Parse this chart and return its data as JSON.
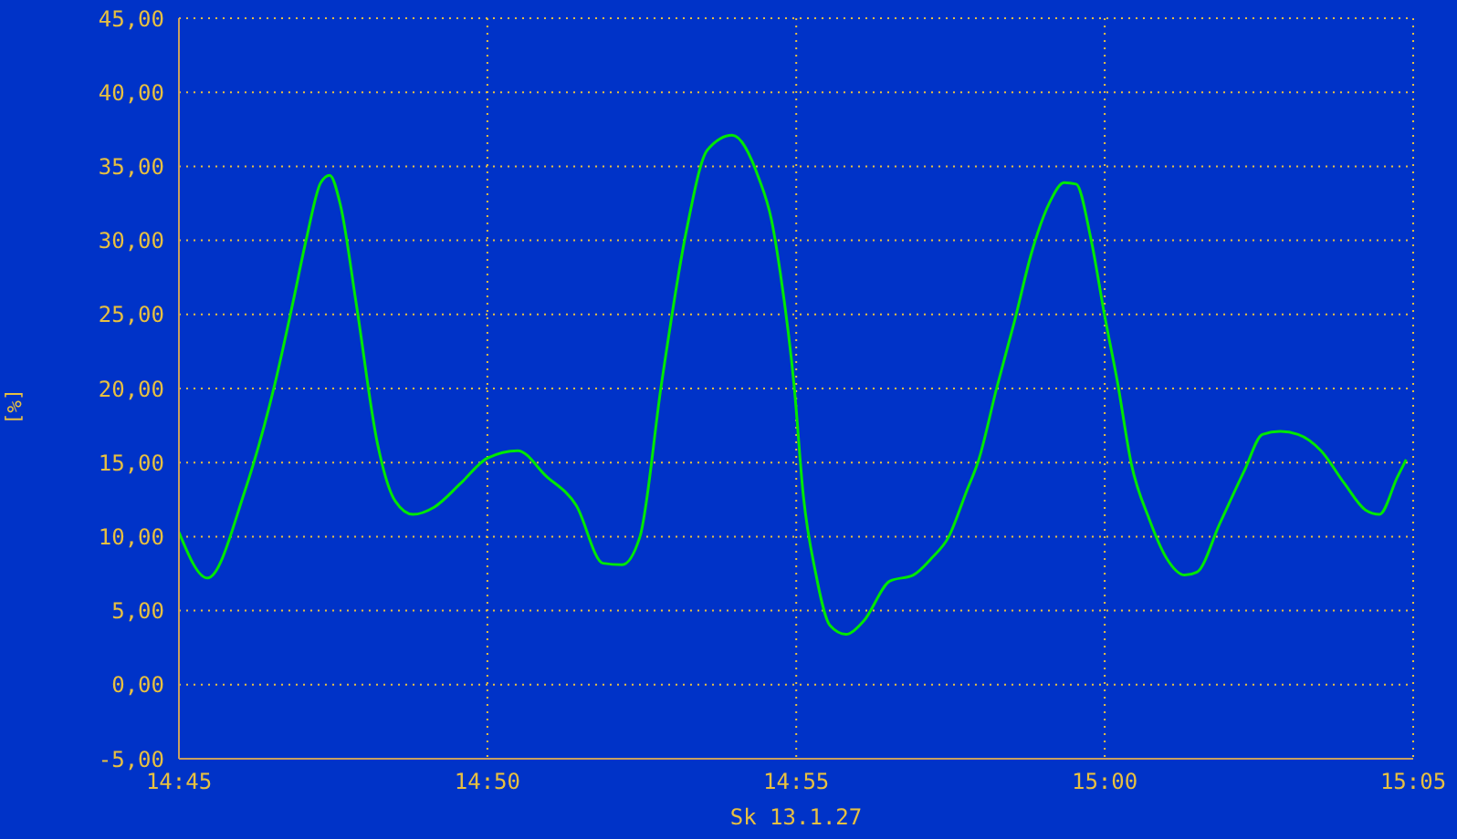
{
  "chart_data": {
    "type": "line",
    "xlabel": "Sk 13.1.27",
    "ylabel": "[%]",
    "xlim": [
      14.75,
      15.0833
    ],
    "xticks": [
      {
        "value": 14.75,
        "label": "14:45"
      },
      {
        "value": 14.8333,
        "label": "14:50"
      },
      {
        "value": 14.9167,
        "label": "14:55"
      },
      {
        "value": 15,
        "label": "15:00"
      },
      {
        "value": 15.0833,
        "label": "15:05"
      }
    ],
    "ylim": [
      -5,
      45
    ],
    "yticks": [
      {
        "value": -5,
        "label": "-5,00"
      },
      {
        "value": 0,
        "label": "0,00"
      },
      {
        "value": 5,
        "label": "5,00"
      },
      {
        "value": 10,
        "label": "10,00"
      },
      {
        "value": 15,
        "label": "15,00"
      },
      {
        "value": 20,
        "label": "20,00"
      },
      {
        "value": 25,
        "label": "25,00"
      },
      {
        "value": 30,
        "label": "30,00"
      },
      {
        "value": 35,
        "label": "35,00"
      },
      {
        "value": 40,
        "label": "40,00"
      },
      {
        "value": 45,
        "label": "45,00"
      }
    ],
    "grid": true,
    "marker": "none",
    "line_style": "solid",
    "x": [
      14.75,
      14.7577,
      14.7677,
      14.7759,
      14.7807,
      14.7845,
      14.7883,
      14.7907,
      14.7936,
      14.7979,
      14.8036,
      14.8084,
      14.8132,
      14.819,
      14.8261,
      14.8333,
      14.8415,
      14.8491,
      14.8573,
      14.8645,
      14.8697,
      14.8745,
      14.8803,
      14.887,
      14.8927,
      14.8994,
      14.9066,
      14.91,
      14.9124,
      14.9162,
      14.9186,
      14.9219,
      14.9258,
      14.9301,
      14.9349,
      14.942,
      14.9483,
      14.9531,
      14.9579,
      14.9626,
      14.966,
      14.9708,
      14.9756,
      14.9804,
      14.9852,
      14.989,
      14.9923,
      14.9962,
      15.0,
      15.0034,
      15.0072,
      15.012,
      15.0168,
      15.0216,
      15.0249,
      15.0311,
      15.0378,
      15.0426,
      15.0474,
      15.0522,
      15.0584,
      15.0647,
      15.0704,
      15.0742,
      15.079,
      15.0814
    ],
    "series": [
      {
        "color": "#00e800",
        "values": [
          10.3,
          7.2,
          13.0,
          20.3,
          25.7,
          30.2,
          33.9,
          34.4,
          32.4,
          25.7,
          16.3,
          12.4,
          11.5,
          12.0,
          13.6,
          15.3,
          15.8,
          14.1,
          12.1,
          8.2,
          8.1,
          10.0,
          20.3,
          30.6,
          36.1,
          37.1,
          34.2,
          31.4,
          27.8,
          20.0,
          12.8,
          7.6,
          4.0,
          3.4,
          4.3,
          7.0,
          7.4,
          8.5,
          10.0,
          13.0,
          15.2,
          20.0,
          24.5,
          29.3,
          32.6,
          33.9,
          33.8,
          30.2,
          24.9,
          20.5,
          14.9,
          11.2,
          8.5,
          7.4,
          7.6,
          10.9,
          14.5,
          16.9,
          17.1,
          16.9,
          15.8,
          13.6,
          11.8,
          11.5,
          14.0,
          15.2
        ]
      }
    ]
  }
}
